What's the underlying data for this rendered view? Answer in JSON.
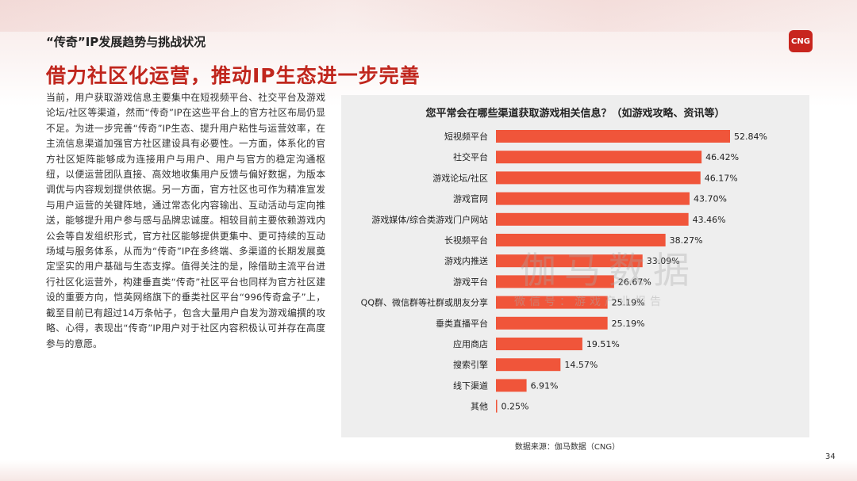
{
  "header": {
    "subtitle": "“传奇”IP发展趋势与挑战状况",
    "logo": "CNG",
    "title": "借力社区化运营，推动IP生态进一步完善"
  },
  "body": {
    "paragraph": "当前，用户获取游戏信息主要集中在短视频平台、社交平台及游戏论坛/社区等渠道，然而“传奇”IP在这些平台上的官方社区布局仍显不足。为进一步完善“传奇”IP生态、提升用户粘性与运营效率，在主流信息渠道加强官方社区建设具有必要性。一方面，体系化的官方社区矩阵能够成为连接用户与用户、用户与官方的稳定沟通枢纽，以便运营团队直接、高效地收集用户反馈与偏好数据，为版本调优与内容规划提供依据。另一方面，官方社区也可作为精准宣发与用户运营的关键阵地，通过常态化内容输出、互动活动与定向推送，能够提升用户参与感与品牌忠诚度。相较目前主要依赖游戏内公会等自发组织形式，官方社区能够提供更集中、更可持续的互动场域与服务体系，从而为“传奇”IP在多终端、多渠道的长期发展奠定坚实的用户基础与生态支撑。值得关注的是，除借助主流平台进行社区化运营外，构建垂直类“传奇”社区平台也同样为官方社区建设的重要方向，恺英网络旗下的垂类社区平台“996传奇盒子”上，截至目前已有超过14万条帖子，包含大量用户自发为游戏编撰的攻略、心得，表现出“传奇”IP用户对于社区内容积极认可并存在高度参与的意愿。"
  },
  "watermark": {
    "main": "伽马数据",
    "sub": "微信号：游戏产业报告"
  },
  "footer": {
    "source": "数据来源：伽马数据（CNG）",
    "page_number": "34"
  },
  "colors": {
    "bar": "#f0553a",
    "title_red": "#c0261d",
    "panel_bg": "#eeeeee"
  },
  "chart_data": {
    "type": "bar",
    "orientation": "horizontal",
    "title": "您平常会在哪些渠道获取游戏相关信息？（如游戏攻略、资讯等）",
    "categories": [
      "短视频平台",
      "社交平台",
      "游戏论坛/社区",
      "游戏官网",
      "游戏媒体/综合类游戏门户网站",
      "长视频平台",
      "游戏内推送",
      "游戏平台",
      "QQ群、微信群等社群或朋友分享",
      "垂类直播平台",
      "应用商店",
      "搜索引擎",
      "线下渠道",
      "其他"
    ],
    "values": [
      52.84,
      46.42,
      46.17,
      43.7,
      43.46,
      38.27,
      33.09,
      26.67,
      25.19,
      25.19,
      19.51,
      14.57,
      6.91,
      0.25
    ],
    "value_labels": [
      "52.84%",
      "46.42%",
      "46.17%",
      "43.70%",
      "43.46%",
      "38.27%",
      "33.09%",
      "26.67%",
      "25.19%",
      "25.19%",
      "19.51%",
      "14.57%",
      "6.91%",
      "0.25%"
    ],
    "unit": "%",
    "xlim": [
      0,
      55
    ],
    "grid": false,
    "legend": "none"
  }
}
